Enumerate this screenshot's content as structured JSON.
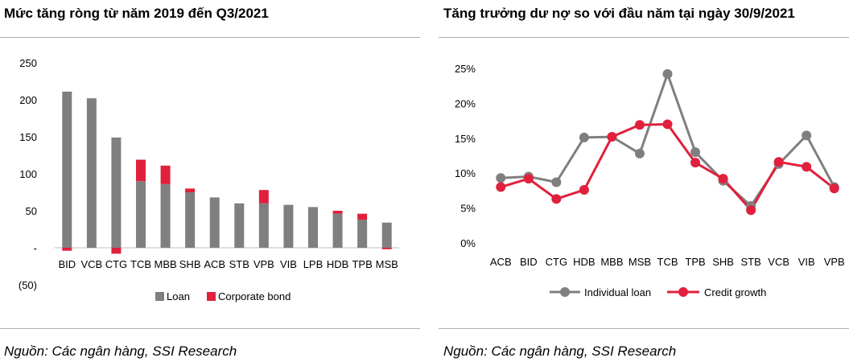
{
  "left": {
    "title": "Mức tăng ròng từ năm 2019 đến Q3/2021",
    "source": "Nguồn: Các ngân hàng, SSI Research"
  },
  "right": {
    "title": "Tăng trưởng dư nợ so với đầu năm tại ngày 30/9/2021",
    "source": "Nguồn: Các ngân hàng, SSI Research"
  },
  "chart_data": [
    {
      "type": "bar",
      "stacked": true,
      "title": "Mức tăng ròng từ năm 2019 đến Q3/2021",
      "categories": [
        "BID",
        "VCB",
        "CTG",
        "TCB",
        "MBB",
        "SHB",
        "ACB",
        "STB",
        "VPB",
        "VIB",
        "LPB",
        "HDB",
        "TPB",
        "MSB"
      ],
      "series": [
        {
          "name": "Loan",
          "color": "#7f7f7f",
          "values": [
            211,
            202,
            149,
            90,
            86,
            75,
            68,
            60,
            60,
            58,
            55,
            46,
            38,
            34
          ]
        },
        {
          "name": "Corporate bond",
          "color": "#e0203c",
          "values": [
            -4,
            0,
            -8,
            29,
            25,
            5,
            0,
            0,
            18,
            0,
            0,
            4,
            8,
            -2
          ]
        }
      ],
      "y_ticks": [
        "250",
        "200",
        "150",
        "100",
        "50",
        "-",
        "(50)"
      ],
      "ylim": [
        -50,
        250
      ],
      "legend": "bottom",
      "grid": false
    },
    {
      "type": "line",
      "title": "Tăng trưởng dư nợ so với đầu năm tại ngày 30/9/2021",
      "categories": [
        "ACB",
        "BID",
        "CTG",
        "HDB",
        "MBB",
        "MSB",
        "TCB",
        "TPB",
        "SHB",
        "STB",
        "VCB",
        "VIB",
        "VPB"
      ],
      "series": [
        {
          "name": "Individual loan",
          "color": "#7f7f7f",
          "values": [
            9.3,
            9.5,
            8.7,
            15.1,
            15.2,
            12.8,
            24.2,
            13.0,
            8.9,
            5.3,
            11.3,
            15.4,
            8.0
          ]
        },
        {
          "name": "Credit growth",
          "color": "#e0203c",
          "values": [
            8.0,
            9.2,
            6.3,
            7.6,
            15.2,
            16.9,
            17.0,
            11.5,
            9.2,
            4.7,
            11.6,
            10.9,
            7.8
          ]
        }
      ],
      "y_ticks": [
        "0%",
        "5%",
        "10%",
        "15%",
        "20%",
        "25%"
      ],
      "ylim": [
        0,
        25
      ],
      "legend": "bottom",
      "grid": false
    }
  ]
}
